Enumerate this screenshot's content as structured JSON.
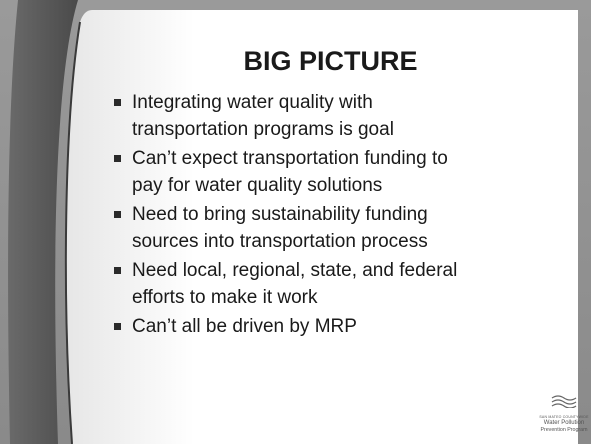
{
  "slide": {
    "title": "BIG PICTURE",
    "bullets": [
      {
        "lines": [
          "Integrating water quality with",
          "transportation programs is goal"
        ]
      },
      {
        "lines": [
          "Can’t expect transportation funding to",
          "pay for water quality solutions"
        ]
      },
      {
        "lines": [
          "Need to bring sustainability funding",
          "sources into transportation process"
        ]
      },
      {
        "lines": [
          "Need local, regional, state, and federal",
          "efforts to make it work"
        ]
      },
      {
        "lines": [
          "Can’t all be driven by MRP"
        ]
      }
    ],
    "logo": {
      "lines": [
        "SAN MATEO COUNTYWIDE",
        "Water Pollution",
        "Prevention Program"
      ]
    }
  }
}
